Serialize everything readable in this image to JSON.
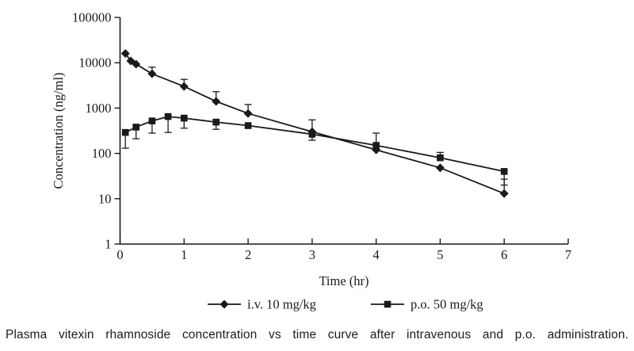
{
  "caption": "Plasma vitexin rhamnoside concentration vs time curve after intravenous and p.o. administration.",
  "colors": {
    "line": "#1a1a1a",
    "text": "#1a1a1a",
    "background": "#ffffff"
  },
  "chart_data": {
    "type": "line",
    "y_scale": "log10",
    "title": "",
    "xlabel": "Time (hr)",
    "ylabel": "Concentration (ng/ml)",
    "xlim": [
      0,
      7
    ],
    "ylim": [
      1,
      100000
    ],
    "xticks": [
      0,
      1,
      2,
      3,
      4,
      5,
      6,
      7
    ],
    "yticks": [
      1,
      10,
      100,
      1000,
      10000,
      100000
    ],
    "ytick_labels": [
      "1",
      "10",
      "100",
      "1000",
      "10000",
      "100000"
    ],
    "grid": false,
    "legend_position": "bottom-center",
    "series": [
      {
        "name": "i.v. 10 mg/kg",
        "marker": "diamond",
        "points": [
          {
            "t": 0.083,
            "c": 16000
          },
          {
            "t": 0.167,
            "c": 11000
          },
          {
            "t": 0.25,
            "c": 9300
          },
          {
            "t": 0.5,
            "c": 5700,
            "hi": 8000
          },
          {
            "t": 1,
            "c": 3000,
            "hi": 4300
          },
          {
            "t": 1.5,
            "c": 1400,
            "hi": 2300
          },
          {
            "t": 2,
            "c": 760,
            "hi": 1200
          },
          {
            "t": 3,
            "c": 300,
            "hi": 550
          },
          {
            "t": 4,
            "c": 120
          },
          {
            "t": 5,
            "c": 48
          },
          {
            "t": 6,
            "c": 13,
            "hi": 27
          }
        ]
      },
      {
        "name": "p.o. 50 mg/kg",
        "marker": "square",
        "points": [
          {
            "t": 0.083,
            "c": 290,
            "lo": 130
          },
          {
            "t": 0.25,
            "c": 380,
            "lo": 210
          },
          {
            "t": 0.5,
            "c": 520,
            "lo": 280
          },
          {
            "t": 0.75,
            "c": 650,
            "lo": 290
          },
          {
            "t": 1,
            "c": 600,
            "lo": 360
          },
          {
            "t": 1.5,
            "c": 490,
            "lo": 340
          },
          {
            "t": 2,
            "c": 410
          },
          {
            "t": 3,
            "c": 265,
            "lo": 195
          },
          {
            "t": 4,
            "c": 150,
            "hi": 280
          },
          {
            "t": 5,
            "c": 80,
            "hi": 105
          },
          {
            "t": 6,
            "c": 40,
            "lo": 20
          }
        ]
      }
    ]
  }
}
